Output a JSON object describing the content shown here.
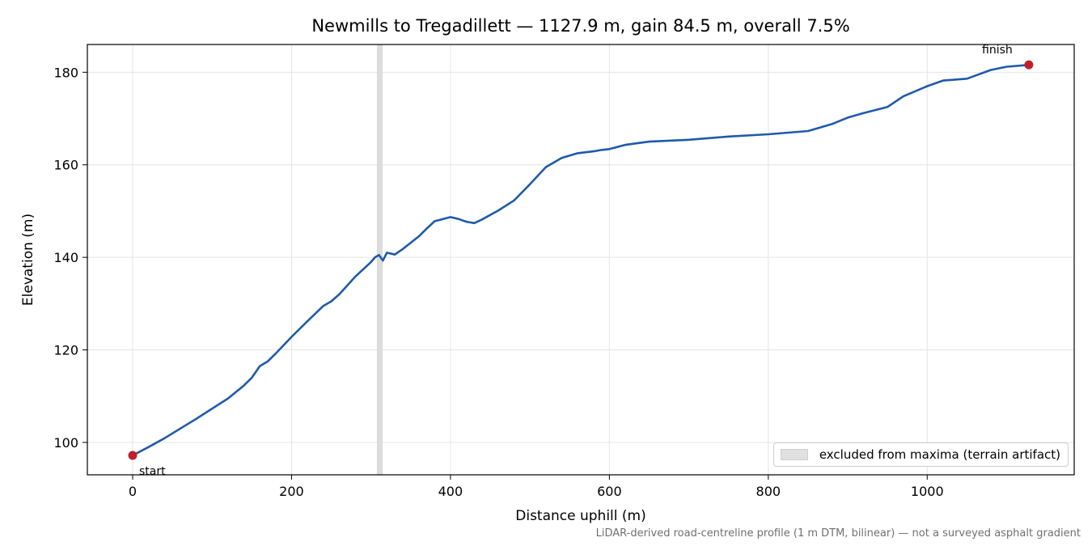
{
  "chart_data": {
    "type": "line",
    "title": "Newmills to Tregadillett — 1127.9 m, gain 84.5 m, overall 7.5%",
    "xlabel": "Distance uphill (m)",
    "ylabel": "Elevation (m)",
    "xlim": [
      -57,
      1185
    ],
    "ylim": [
      93,
      186
    ],
    "xticks": [
      0,
      200,
      400,
      600,
      800,
      1000
    ],
    "yticks": [
      100,
      120,
      140,
      160,
      180
    ],
    "grid": true,
    "line_color": "#1f5aab",
    "marker_color": "#c0202a",
    "series": [
      {
        "x": [
          0,
          20,
          40,
          60,
          80,
          100,
          120,
          140,
          150,
          160,
          170,
          180,
          200,
          220,
          240,
          250,
          260,
          280,
          300,
          305,
          310,
          315,
          320,
          330,
          340,
          360,
          370,
          380,
          400,
          410,
          420,
          430,
          440,
          460,
          480,
          500,
          520,
          540,
          560,
          580,
          590,
          600,
          620,
          650,
          700,
          750,
          800,
          850,
          880,
          900,
          920,
          950,
          970,
          1000,
          1020,
          1050,
          1080,
          1100,
          1127.9
        ],
        "y": [
          97.2,
          99.0,
          100.9,
          103.0,
          105.1,
          107.3,
          109.5,
          112.3,
          114.0,
          116.5,
          117.5,
          119.2,
          122.8,
          126.2,
          129.5,
          130.5,
          132.0,
          135.8,
          139.0,
          140.0,
          140.5,
          139.3,
          141.0,
          140.6,
          141.8,
          144.5,
          146.2,
          147.8,
          148.7,
          148.3,
          147.7,
          147.4,
          148.2,
          150.1,
          152.3,
          155.8,
          159.5,
          161.5,
          162.5,
          162.9,
          163.2,
          163.4,
          164.3,
          165.0,
          165.4,
          166.1,
          166.6,
          167.3,
          168.8,
          170.2,
          171.2,
          172.5,
          174.8,
          177.0,
          178.2,
          178.6,
          180.5,
          181.2,
          181.6
        ]
      }
    ],
    "excluded_band": [
      308,
      314
    ],
    "annotations": {
      "start": {
        "text": "start",
        "x": 0,
        "y": 97.2
      },
      "finish": {
        "text": "finish",
        "x": 1127.9,
        "y": 181.6
      }
    },
    "legend": {
      "entry": "excluded from maxima (terrain artifact)",
      "placement": "lower-right"
    },
    "source_note": "LiDAR-derived road-centreline profile (1 m DTM, bilinear) — not a surveyed asphalt gradient"
  }
}
